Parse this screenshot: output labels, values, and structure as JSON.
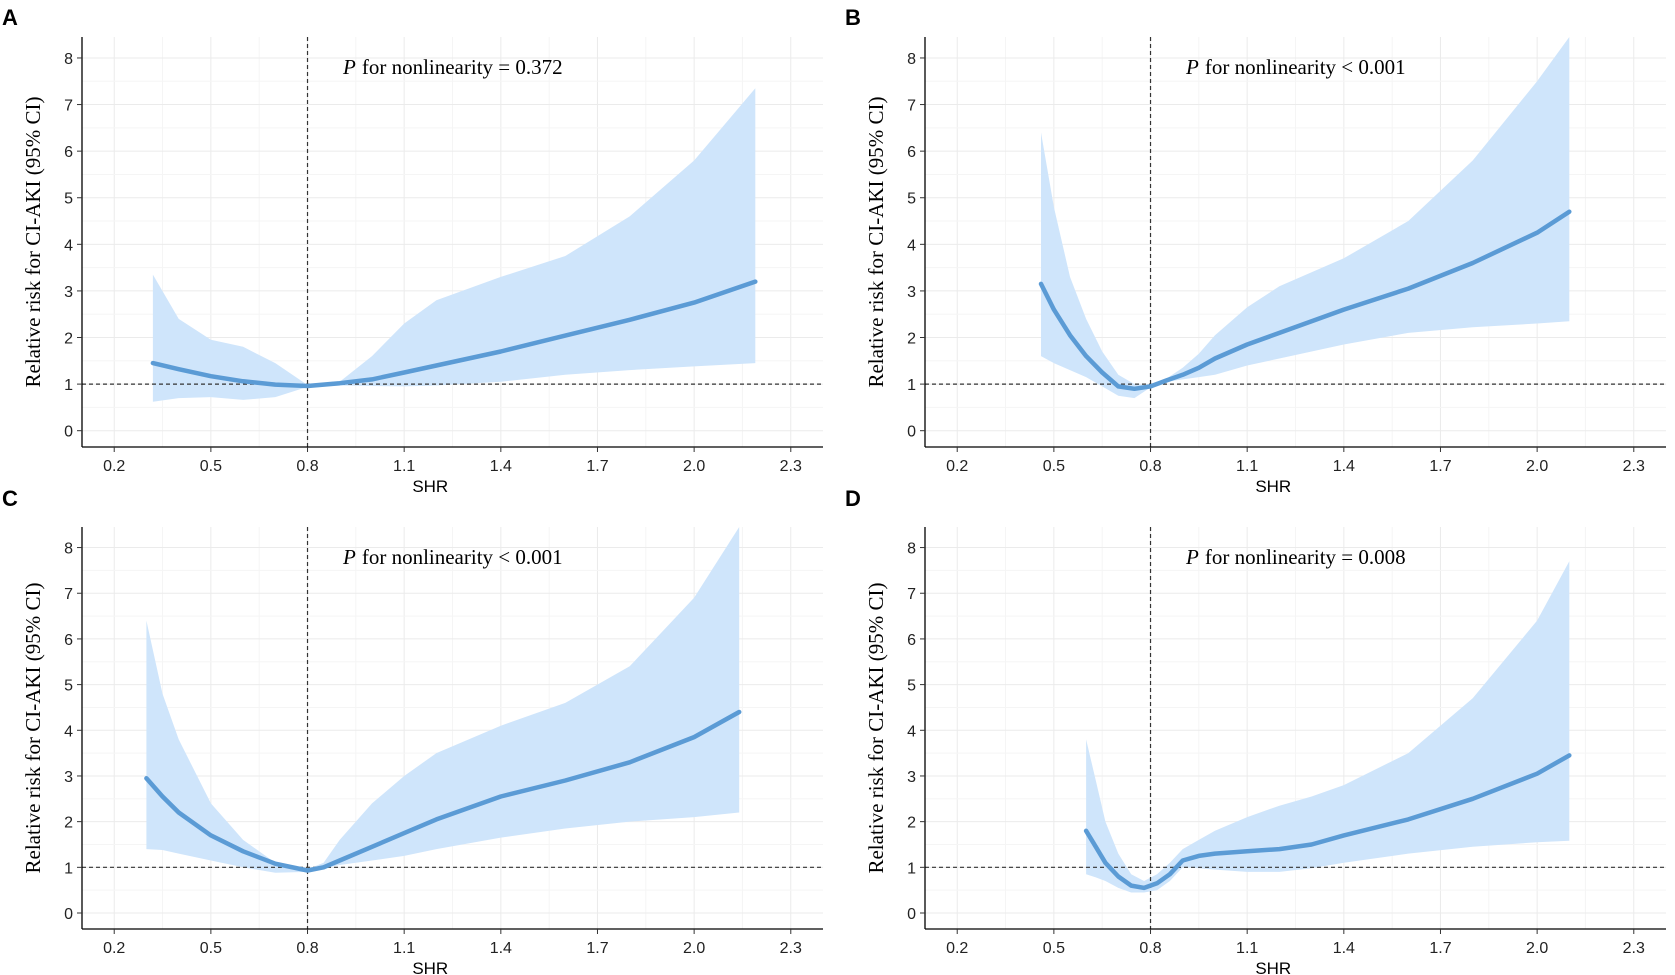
{
  "chart_data": [
    {
      "panel": "A",
      "type": "line",
      "xlabel": "SHR",
      "ylabel": "Relative risk for CI-AKI (95% CI)",
      "annotation_p": "P",
      "annotation_text": "for nonlinearity = 0.372",
      "xlim": [
        0.1,
        2.4
      ],
      "ylim": [
        -0.35,
        8.45
      ],
      "xticks": [
        "0.2",
        "0.5",
        "0.8",
        "1.1",
        "1.4",
        "1.7",
        "2.0",
        "2.3"
      ],
      "yticks": [
        "0",
        "1",
        "2",
        "3",
        "4",
        "5",
        "6",
        "7",
        "8"
      ],
      "reference_x": 0.8,
      "reference_y": 1,
      "line_color": "#5b9bd5",
      "band_color": "#cfe5fb",
      "x": [
        0.32,
        0.4,
        0.5,
        0.6,
        0.7,
        0.8,
        0.9,
        1.0,
        1.1,
        1.2,
        1.4,
        1.6,
        1.8,
        2.0,
        2.19
      ],
      "y": [
        1.45,
        1.32,
        1.17,
        1.06,
        0.99,
        0.96,
        1.02,
        1.1,
        1.25,
        1.4,
        1.7,
        2.04,
        2.38,
        2.75,
        3.2
      ],
      "lower": [
        0.62,
        0.7,
        0.72,
        0.66,
        0.72,
        0.94,
        0.97,
        0.96,
        0.95,
        0.97,
        1.05,
        1.2,
        1.3,
        1.38,
        1.45
      ],
      "upper": [
        3.35,
        2.4,
        1.95,
        1.8,
        1.45,
        0.98,
        1.05,
        1.6,
        2.3,
        2.8,
        3.3,
        3.75,
        4.6,
        5.8,
        7.35
      ]
    },
    {
      "panel": "B",
      "type": "line",
      "xlabel": "SHR",
      "ylabel": "Relative risk for CI-AKI (95% CI)",
      "annotation_p": "P",
      "annotation_text": "for nonlinearity < 0.001",
      "xlim": [
        0.1,
        2.4
      ],
      "ylim": [
        -0.35,
        8.45
      ],
      "xticks": [
        "0.2",
        "0.5",
        "0.8",
        "1.1",
        "1.4",
        "1.7",
        "2.0",
        "2.3"
      ],
      "yticks": [
        "0",
        "1",
        "2",
        "3",
        "4",
        "5",
        "6",
        "7",
        "8"
      ],
      "reference_x": 0.8,
      "reference_y": 1,
      "line_color": "#5b9bd5",
      "band_color": "#cfe5fb",
      "x": [
        0.46,
        0.5,
        0.55,
        0.6,
        0.65,
        0.7,
        0.75,
        0.8,
        0.85,
        0.9,
        0.95,
        1.0,
        1.1,
        1.2,
        1.4,
        1.6,
        1.8,
        2.0,
        2.1
      ],
      "y": [
        3.15,
        2.6,
        2.05,
        1.6,
        1.25,
        0.95,
        0.9,
        0.95,
        1.08,
        1.2,
        1.35,
        1.55,
        1.85,
        2.1,
        2.6,
        3.05,
        3.6,
        4.25,
        4.7
      ],
      "lower": [
        1.6,
        1.45,
        1.3,
        1.15,
        0.95,
        0.75,
        0.7,
        0.93,
        1.05,
        1.1,
        1.15,
        1.2,
        1.4,
        1.55,
        1.85,
        2.1,
        2.22,
        2.3,
        2.35
      ],
      "upper": [
        6.4,
        4.8,
        3.3,
        2.4,
        1.7,
        1.2,
        1.0,
        0.97,
        1.12,
        1.35,
        1.65,
        2.05,
        2.65,
        3.1,
        3.7,
        4.5,
        5.8,
        7.5,
        8.45
      ]
    },
    {
      "panel": "C",
      "type": "line",
      "xlabel": "SHR",
      "ylabel": "Relative risk for CI-AKI (95% CI)",
      "annotation_p": "P",
      "annotation_text": "for nonlinearity < 0.001",
      "xlim": [
        0.1,
        2.4
      ],
      "ylim": [
        -0.35,
        8.45
      ],
      "xticks": [
        "0.2",
        "0.5",
        "0.8",
        "1.1",
        "1.4",
        "1.7",
        "2.0",
        "2.3"
      ],
      "yticks": [
        "0",
        "1",
        "2",
        "3",
        "4",
        "5",
        "6",
        "7",
        "8"
      ],
      "reference_x": 0.8,
      "reference_y": 1,
      "line_color": "#5b9bd5",
      "band_color": "#cfe5fb",
      "x": [
        0.3,
        0.35,
        0.4,
        0.5,
        0.6,
        0.7,
        0.8,
        0.85,
        0.9,
        1.0,
        1.1,
        1.2,
        1.4,
        1.6,
        1.8,
        2.0,
        2.14
      ],
      "y": [
        2.95,
        2.55,
        2.2,
        1.7,
        1.35,
        1.08,
        0.93,
        1.0,
        1.15,
        1.45,
        1.75,
        2.05,
        2.55,
        2.9,
        3.3,
        3.85,
        4.4
      ],
      "lower": [
        1.4,
        1.38,
        1.3,
        1.15,
        1.0,
        0.88,
        0.9,
        0.98,
        1.05,
        1.15,
        1.25,
        1.4,
        1.65,
        1.85,
        2.0,
        2.1,
        2.2
      ],
      "upper": [
        6.4,
        4.8,
        3.8,
        2.4,
        1.6,
        1.1,
        0.96,
        1.1,
        1.6,
        2.4,
        3.0,
        3.5,
        4.1,
        4.6,
        5.4,
        6.9,
        8.45
      ]
    },
    {
      "panel": "D",
      "type": "line",
      "xlabel": "SHR",
      "ylabel": "Relative risk for CI-AKI (95% CI)",
      "annotation_p": "P",
      "annotation_text": "for nonlinearity = 0.008",
      "xlim": [
        0.1,
        2.4
      ],
      "ylim": [
        -0.35,
        8.45
      ],
      "xticks": [
        "0.2",
        "0.5",
        "0.8",
        "1.1",
        "1.4",
        "1.7",
        "2.0",
        "2.3"
      ],
      "yticks": [
        "0",
        "1",
        "2",
        "3",
        "4",
        "5",
        "6",
        "7",
        "8"
      ],
      "reference_x": 0.8,
      "reference_y": 1,
      "line_color": "#5b9bd5",
      "band_color": "#cfe5fb",
      "x": [
        0.6,
        0.63,
        0.66,
        0.7,
        0.74,
        0.78,
        0.82,
        0.86,
        0.9,
        0.95,
        1.0,
        1.1,
        1.2,
        1.3,
        1.4,
        1.6,
        1.8,
        2.0,
        2.1
      ],
      "y": [
        1.8,
        1.45,
        1.1,
        0.8,
        0.6,
        0.55,
        0.65,
        0.85,
        1.15,
        1.25,
        1.3,
        1.35,
        1.4,
        1.5,
        1.7,
        2.05,
        2.5,
        3.05,
        3.45
      ],
      "lower": [
        0.85,
        0.78,
        0.7,
        0.55,
        0.45,
        0.45,
        0.5,
        0.7,
        1.0,
        0.98,
        0.95,
        0.9,
        0.9,
        0.98,
        1.1,
        1.3,
        1.45,
        1.55,
        1.58
      ],
      "upper": [
        3.8,
        2.9,
        2.0,
        1.3,
        0.85,
        0.7,
        0.85,
        1.1,
        1.4,
        1.6,
        1.8,
        2.1,
        2.35,
        2.55,
        2.8,
        3.5,
        4.7,
        6.4,
        7.7
      ]
    }
  ]
}
